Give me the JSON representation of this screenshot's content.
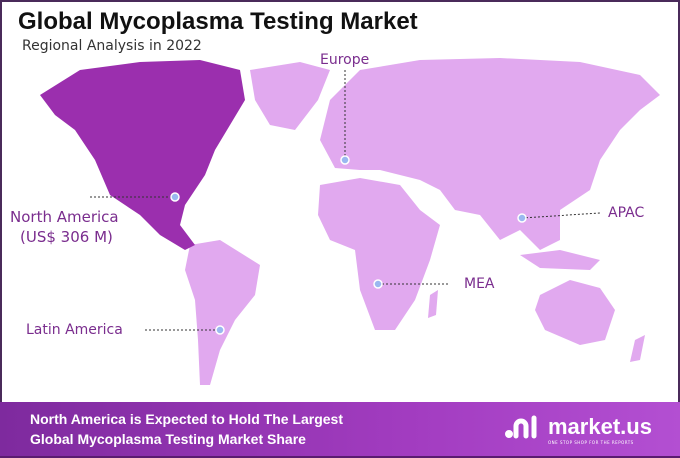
{
  "header": {
    "title": "Global Mycoplasma Testing Market",
    "subtitle": "Regional Analysis in 2022"
  },
  "regions": [
    {
      "name": "Europe"
    },
    {
      "name": "North America",
      "value": "(US$ 306 M)"
    },
    {
      "name": "APAC"
    },
    {
      "name": "MEA"
    },
    {
      "name": "Latin America"
    }
  ],
  "colors": {
    "highlight": "#9b2fae",
    "land": "#e1a9ef",
    "banner": "#9a36b8",
    "text": "#7a2d8e"
  },
  "banner": {
    "line1": "North America is Expected to Hold The Largest",
    "line2": "Global Mycoplasma Testing Market Share"
  },
  "logo": {
    "name": "market.us",
    "tagline": "ONE STOP SHOP FOR THE REPORTS"
  }
}
